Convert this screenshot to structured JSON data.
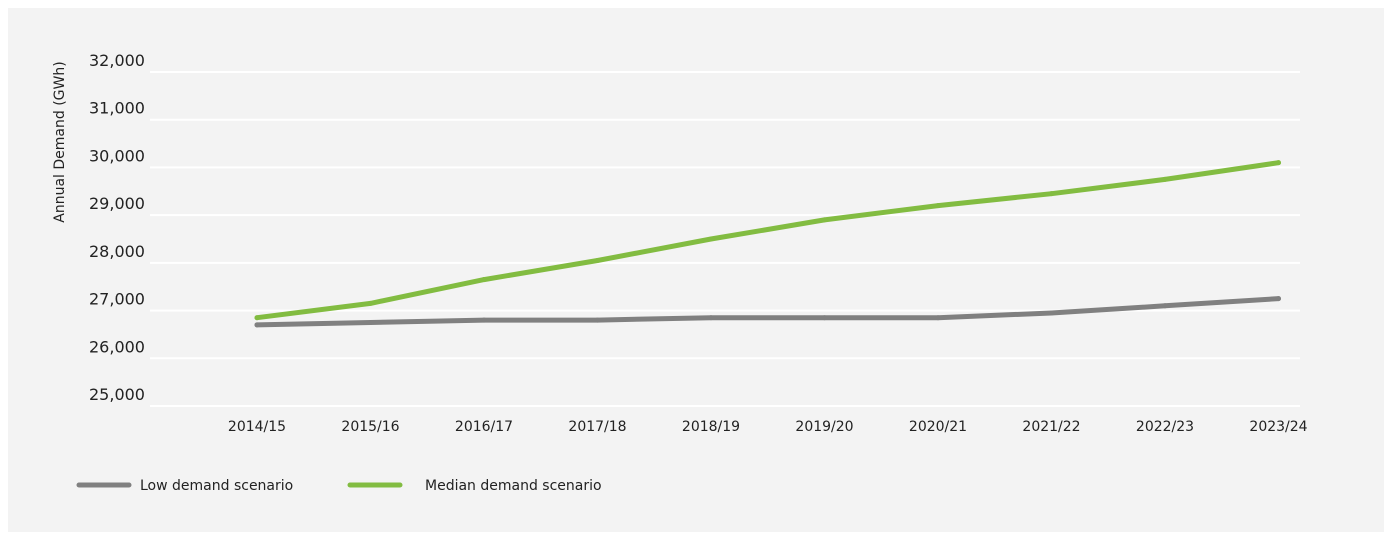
{
  "chart_data": {
    "type": "line",
    "xlabel": "",
    "ylabel": "Annual Demand (GWh)",
    "ylim": [
      25000,
      32000
    ],
    "yticks": [
      25000,
      26000,
      27000,
      28000,
      29000,
      30000,
      31000,
      32000
    ],
    "ytick_labels": [
      "25,000",
      "26,000",
      "27,000",
      "28,000",
      "29,000",
      "30,000",
      "31,000",
      "32,000"
    ],
    "grid": true,
    "legend_position": "bottom-left",
    "categories": [
      "2014/15",
      "2015/16",
      "2016/17",
      "2017/18",
      "2018/19",
      "2019/20",
      "2020/21",
      "2021/22",
      "2022/23",
      "2023/24"
    ],
    "series": [
      {
        "name": "Low demand scenario",
        "color": "#808080",
        "values": [
          26700,
          26750,
          26800,
          26800,
          26850,
          26850,
          26850,
          26950,
          27100,
          27250
        ]
      },
      {
        "name": "Median demand scenario",
        "color": "#82bc41",
        "values": [
          26850,
          27150,
          27650,
          28050,
          28500,
          28900,
          29200,
          29450,
          29750,
          30100
        ]
      }
    ]
  }
}
